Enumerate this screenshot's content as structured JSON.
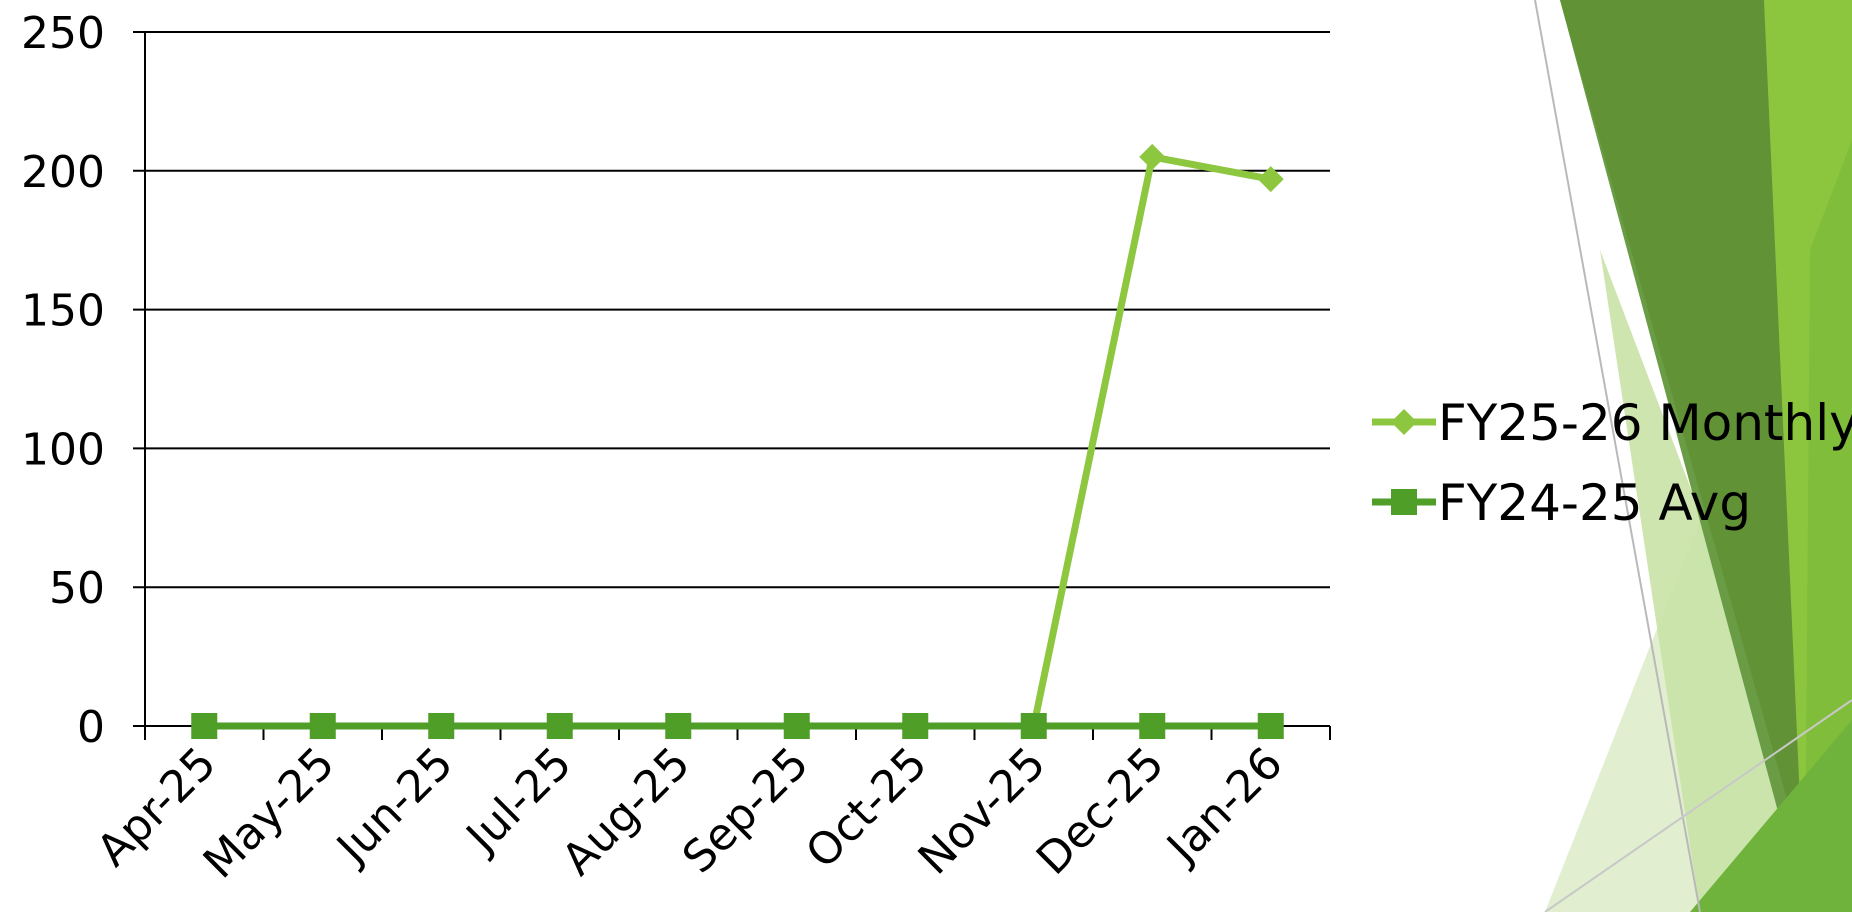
{
  "chart_data": {
    "type": "line",
    "title": "",
    "xlabel": "",
    "ylabel": "",
    "categories": [
      "Apr-25",
      "May-25",
      "Jun-25",
      "Jul-25",
      "Aug-25",
      "Sep-25",
      "Oct-25",
      "Nov-25",
      "Dec-25",
      "Jan-26"
    ],
    "ylim": [
      0,
      250
    ],
    "yticks": [
      0,
      50,
      100,
      150,
      200,
      250
    ],
    "grid": true,
    "legend_position": "right",
    "series": [
      {
        "name": "FY25-26 Monthly",
        "values": [
          0,
          0,
          0,
          0,
          0,
          0,
          0,
          0,
          205,
          197
        ],
        "color": "#8dc63f",
        "marker": "diamond"
      },
      {
        "name": "FY24-25 Avg",
        "values": [
          0,
          0,
          0,
          0,
          0,
          0,
          0,
          0,
          0,
          0
        ],
        "color": "#4f9e28",
        "marker": "square"
      }
    ]
  },
  "decor_colors": {
    "dark_green": "#5f9134",
    "mid_green": "#6fb33c",
    "light_green": "#b7d98f",
    "pale_green": "#dcebc7",
    "bright_green": "#8cc63f"
  }
}
